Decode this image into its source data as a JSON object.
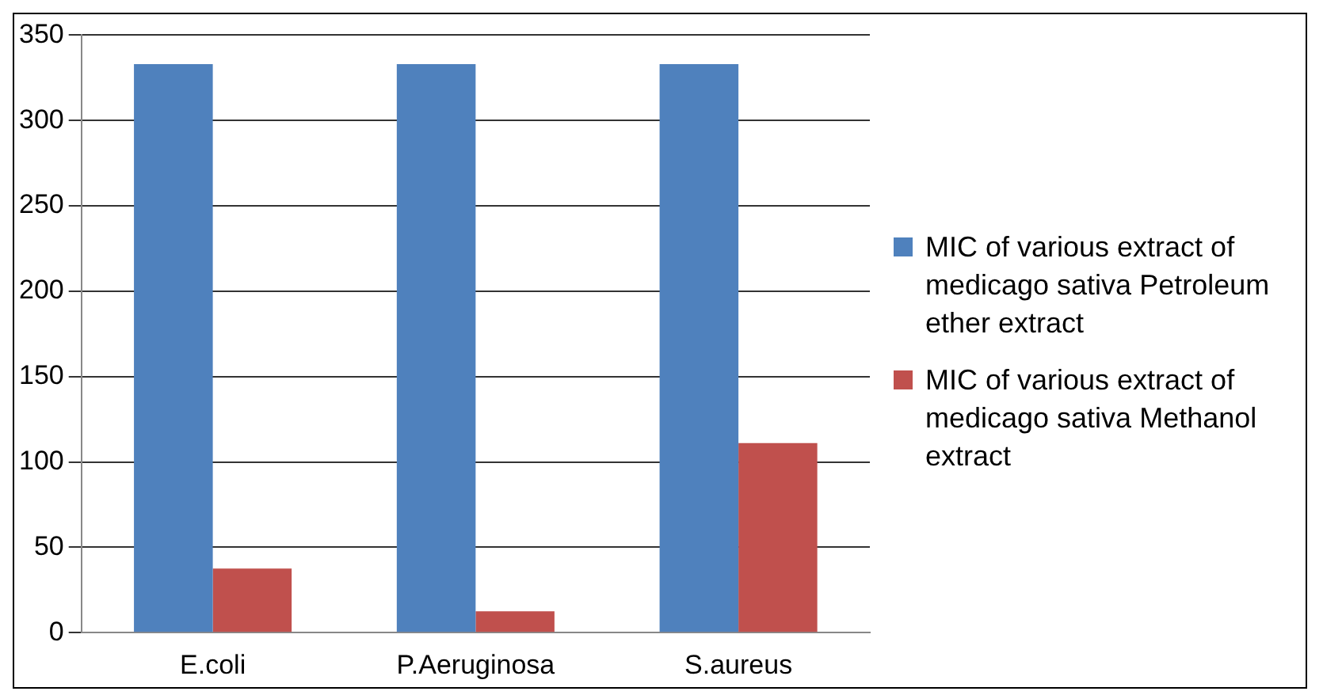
{
  "chart_data": {
    "type": "bar",
    "categories": [
      "E.coli",
      "P.Aeruginosa",
      "S.aureus"
    ],
    "series": [
      {
        "name": "MIC of various extract of medicago sativa Petroleum ether extract",
        "color": "#4f81bd",
        "values": [
          333,
          333,
          333
        ]
      },
      {
        "name": "MIC of various extract of medicago sativa Methanol extract",
        "color": "#c0504d",
        "values": [
          37.5,
          12.5,
          111
        ]
      }
    ],
    "ylim": [
      0,
      350
    ],
    "yticks": [
      0,
      50,
      100,
      150,
      200,
      250,
      300,
      350
    ],
    "grid": "y",
    "legend": "right"
  }
}
